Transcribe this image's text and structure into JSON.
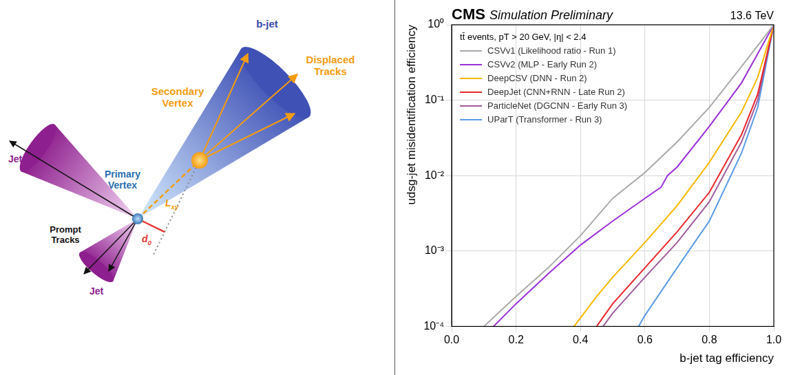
{
  "diagram": {
    "labels": {
      "b_jet": "b-jet",
      "displaced_tracks": "Displaced Tracks",
      "secondary_vertex": "Secondary Vertex",
      "primary_vertex": "Primary Vertex",
      "jets": [
        "Jet",
        "Jet"
      ],
      "prompt_tracks": "Prompt Tracks",
      "lxy": {
        "symbol": "L",
        "subscript": "xy"
      },
      "d0": {
        "symbol": "d",
        "subscript": "0"
      }
    }
  },
  "chart_data": {
    "type": "line",
    "title": "CMS",
    "subtitle": "Simulation Preliminary",
    "annotations": [
      "13.6 TeV",
      "tt̄ events, pT > 20 GeV, |η| < 2.4"
    ],
    "x_label": "b-jet tag efficiency",
    "y_label": "udsg-jet misidentification efficiency",
    "xlim": [
      0,
      1
    ],
    "xticks": [
      {
        "value": 0,
        "label": "0.0"
      },
      0.2,
      0.4,
      0.6,
      0.8,
      {
        "value": 1,
        "label": "1.0"
      }
    ],
    "ylim": [
      0.0001,
      1
    ],
    "yticks": [
      {
        "value": 0.0001,
        "label": "10⁻⁴"
      },
      {
        "value": 0.001,
        "label": "10⁻³"
      },
      {
        "value": 0.01,
        "label": "10⁻²"
      },
      {
        "value": 0.1,
        "label": "10⁻¹"
      },
      {
        "value": 1,
        "label": "10⁰"
      }
    ],
    "log": "y",
    "grid": true,
    "legend": "upper left",
    "series": [
      {
        "name": "CSVv1 (Likelihood ratio - Run 1)",
        "color": "#a9a9a9",
        "x": [
          0.1,
          0.2,
          0.3,
          0.4,
          0.5,
          0.6,
          0.7,
          0.8,
          0.9,
          1.0
        ],
        "values": [
          0.0001,
          0.00025,
          0.0006,
          0.0016,
          0.005,
          0.011,
          0.028,
          0.08,
          0.28,
          1.0
        ]
      },
      {
        "name": "CSVv2 (MLP - Early Run 2)",
        "color": "#9b30d9",
        "x": [
          0.13,
          0.2,
          0.3,
          0.4,
          0.5,
          0.6,
          0.65,
          0.67,
          0.7,
          0.8,
          0.9,
          1.0
        ],
        "values": [
          0.0001,
          0.0002,
          0.0005,
          0.0012,
          0.0025,
          0.005,
          0.007,
          0.01,
          0.013,
          0.045,
          0.17,
          1.0
        ]
      },
      {
        "name": "DeepCSV (DNN - Run 2)",
        "color": "#f5b800",
        "x": [
          0.38,
          0.45,
          0.5,
          0.6,
          0.7,
          0.8,
          0.9,
          0.95,
          1.0
        ],
        "values": [
          0.0001,
          0.00025,
          0.00045,
          0.0013,
          0.004,
          0.015,
          0.07,
          0.2,
          1.0
        ]
      },
      {
        "name": "DeepJet (CNN+RNN - Late Run 2)",
        "color": "#e8262b",
        "x": [
          0.45,
          0.5,
          0.6,
          0.7,
          0.8,
          0.9,
          0.95,
          1.0
        ],
        "values": [
          0.0001,
          0.0002,
          0.0006,
          0.0018,
          0.006,
          0.035,
          0.12,
          1.0
        ]
      },
      {
        "name": "ParticleNet (DGCNN - Early Run 3)",
        "color": "#a05b9a",
        "x": [
          0.47,
          0.5,
          0.6,
          0.7,
          0.8,
          0.9,
          0.95,
          1.0
        ],
        "values": [
          0.0001,
          0.00015,
          0.00045,
          0.0013,
          0.0045,
          0.028,
          0.1,
          1.0
        ]
      },
      {
        "name": "UParT (Transformer - Run 3)",
        "color": "#5b9be8",
        "x": [
          0.58,
          0.6,
          0.7,
          0.8,
          0.9,
          0.95,
          1.0
        ],
        "values": [
          0.0001,
          0.00014,
          0.0006,
          0.0025,
          0.02,
          0.08,
          1.0
        ]
      }
    ]
  }
}
